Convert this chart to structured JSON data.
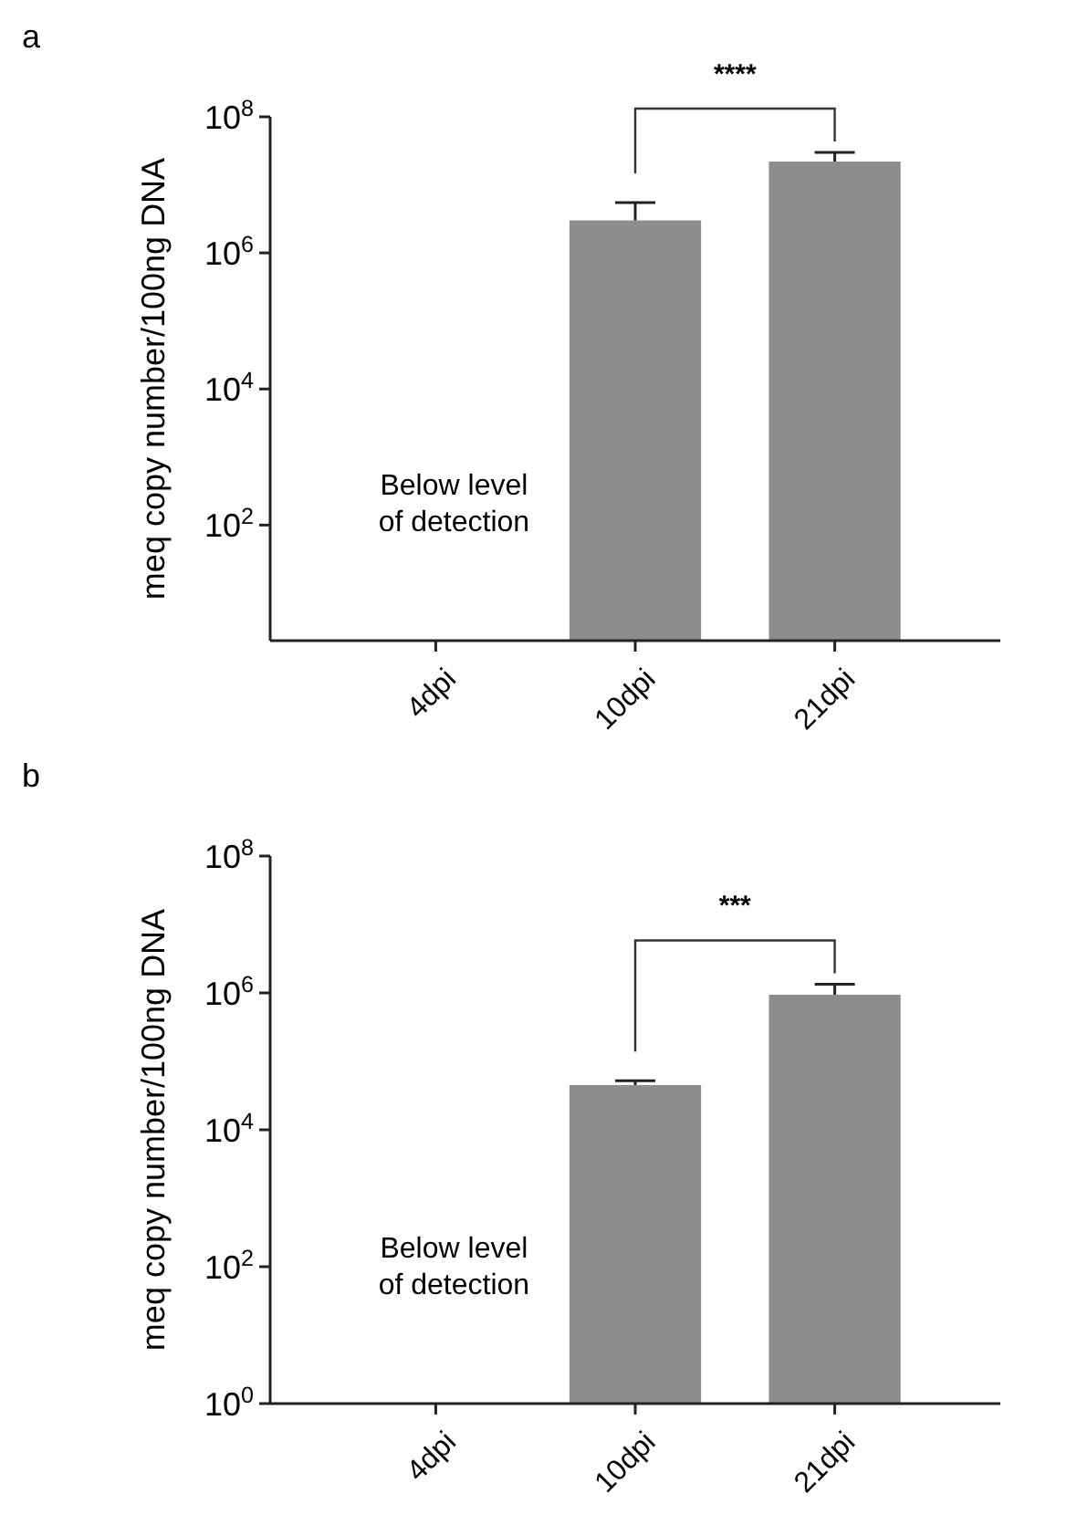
{
  "chart_data": [
    {
      "type": "bar",
      "title": "a",
      "ylabel": "meq copy number/100ng DNA",
      "categories": [
        "4dpi",
        "10dpi",
        "21dpi"
      ],
      "values": [
        null,
        3000000,
        22000000
      ],
      "errors": [
        null,
        [
          3000000,
          5500000
        ],
        [
          22000000,
          30000000
        ]
      ],
      "color": "#8c8c8c",
      "log": true,
      "ylim": [
        2,
        100000000
      ],
      "yticks": [
        {
          "value": 100,
          "label": "10$^{2}$"
        },
        {
          "value": 10000,
          "label": "10$^{4}$"
        },
        {
          "value": 1000000,
          "label": "10$^{6}$"
        },
        {
          "value": 100000000,
          "label": "10$^{8}$"
        }
      ],
      "grid": false,
      "annotations": [
        "Below level of detection",
        "****"
      ]
    },
    {
      "type": "bar",
      "title": "b",
      "ylabel": "meq copy number/100ng DNA",
      "categories": [
        "4dpi",
        "10dpi",
        "21dpi"
      ],
      "values": [
        null,
        45000,
        940000
      ],
      "errors": [
        null,
        [
          45000,
          52000
        ],
        [
          940000,
          1340000
        ]
      ],
      "color": "#8c8c8c",
      "log": true,
      "ylim": [
        1,
        100000000
      ],
      "yticks": [
        {
          "value": 1,
          "label": "10$^{0}$"
        },
        {
          "value": 100,
          "label": "10$^{2}$"
        },
        {
          "value": 10000,
          "label": "10$^{4}$"
        },
        {
          "value": 1000000,
          "label": "10$^{6}$"
        },
        {
          "value": 100000000,
          "label": "10$^{8}$"
        }
      ],
      "grid": false,
      "annotations": [
        "Below level of detection",
        "***"
      ]
    }
  ]
}
